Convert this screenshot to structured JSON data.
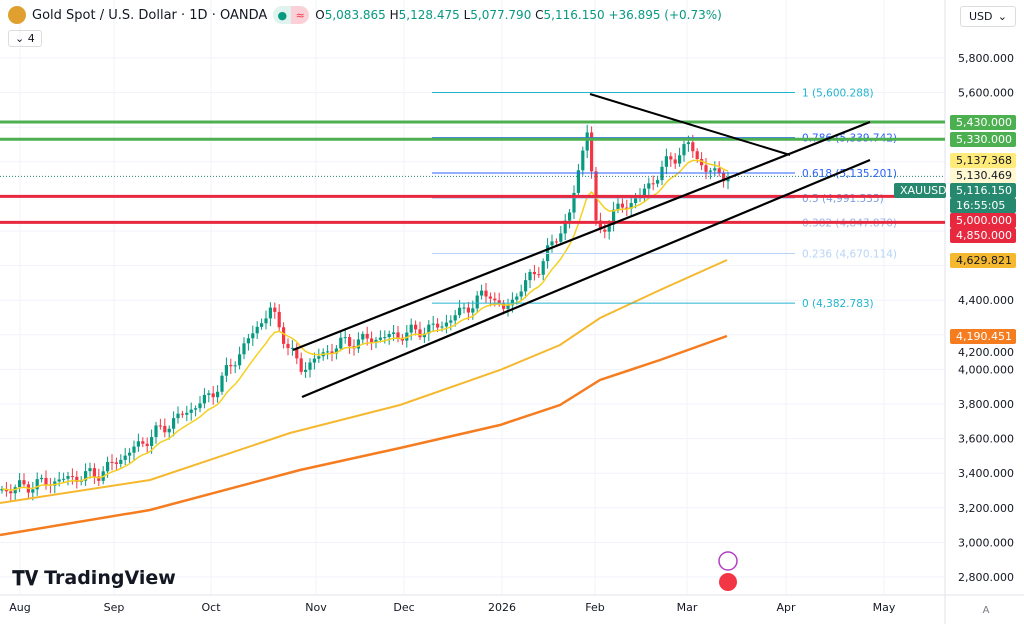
{
  "header": {
    "title": "Gold Spot / U.S. Dollar · 1D · OANDA",
    "open_label": "O",
    "open": "5,083.865",
    "high_label": "H",
    "high": "5,128.475",
    "low_label": "L",
    "low": "5,077.790",
    "close_label": "C",
    "close": "5,116.150",
    "change": "+36.895 (+0.73%)",
    "indicators_count": "4",
    "currency": "USD"
  },
  "symbol": "XAUUSD",
  "countdown": "16:55:05",
  "price_axis": [
    "5,800.000",
    "5,600.000",
    "4,400.000",
    "4,200.000",
    "4,000.000",
    "3,800.000",
    "3,600.000",
    "3,400.000",
    "3,200.000",
    "3,000.000",
    "2,800.000"
  ],
  "price_values": [
    5800,
    5600,
    4400,
    4200,
    4000,
    3800,
    3600,
    3400,
    3200,
    3000,
    2800
  ],
  "time_axis": [
    "Aug",
    "Sep",
    "Oct",
    "Nov",
    "Dec",
    "2026",
    "Feb",
    "Mar",
    "Apr",
    "May"
  ],
  "price_tags": [
    {
      "label": "5,430.000",
      "price": 5430,
      "bg": "#4caf50",
      "fg": "#fff"
    },
    {
      "label": "5,330.000",
      "price": 5330,
      "bg": "#4caf50",
      "fg": "#fff"
    },
    {
      "label": "5,137.368",
      "price": 5210,
      "bg": "#ffeb7a",
      "fg": "#131722"
    },
    {
      "label": "5,130.469",
      "price": 5160,
      "bg": "#fff8d0",
      "fg": "#131722"
    },
    {
      "label": "5,116.150",
      "price": 5110,
      "bg": "#26886e",
      "fg": "#fff"
    },
    {
      "label": "5,000.000",
      "price": 5000,
      "bg": "#e8283e",
      "fg": "#fff"
    },
    {
      "label": "4,850.000",
      "price": 4850,
      "bg": "#e8283e",
      "fg": "#fff"
    },
    {
      "label": "4,629.821",
      "price": 4629.821,
      "bg": "#f5b82e",
      "fg": "#131722"
    },
    {
      "label": "4,190.451",
      "price": 4190.451,
      "bg": "#f57c1f",
      "fg": "#fff"
    }
  ],
  "fib_levels": [
    {
      "label": "1 (5,600.288)",
      "price": 5600.288,
      "color": "#22b5d0"
    },
    {
      "label": "0.786 (5,339.742)",
      "price": 5339.742,
      "color": "#2962ff"
    },
    {
      "label": "0.618 (5,135.201)",
      "price": 5135.201,
      "color": "#2962ff"
    },
    {
      "label": "0.5 (4,991.535)",
      "price": 4991.535,
      "color": "#7e9cd8"
    },
    {
      "label": "0.382 (4,847.870)",
      "price": 4847.87,
      "color": "#9fb4e8"
    },
    {
      "label": "0.236 (4,670.114)",
      "price": 4670.114,
      "color": "#b8d4f5"
    },
    {
      "label": "0 (4,382.783)",
      "price": 4382.783,
      "color": "#22b5d0"
    }
  ],
  "horizontal_levels": [
    {
      "price": 5430,
      "color": "#4caf50"
    },
    {
      "price": 5330,
      "color": "#4caf50"
    },
    {
      "price": 5000,
      "color": "#e8283e"
    },
    {
      "price": 4850,
      "color": "#e8283e"
    }
  ],
  "colors": {
    "up": "#089981",
    "down": "#f23645",
    "ma_fast": "#f5d020",
    "ma_50": "#f5b82e",
    "ma_200": "#f57c1f"
  },
  "brand": "TradingView"
}
